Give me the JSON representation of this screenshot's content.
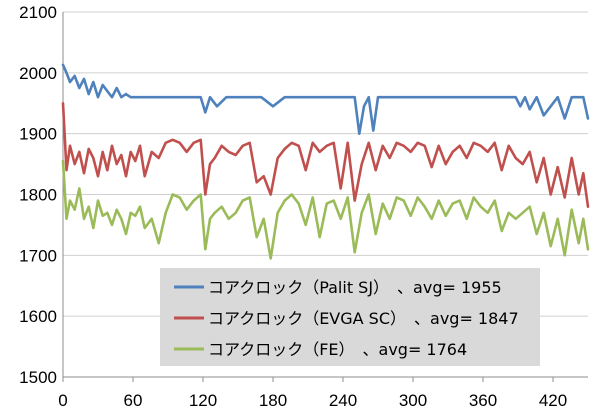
{
  "chart_data": {
    "type": "line",
    "title": "",
    "xlabel": "",
    "ylabel": "",
    "xlim": [
      0,
      450
    ],
    "ylim": [
      1500,
      2100
    ],
    "x_ticks": [
      "0",
      "60",
      "120",
      "180",
      "240",
      "300",
      "360",
      "420"
    ],
    "y_ticks": [
      "1500",
      "1600",
      "1700",
      "1800",
      "1900",
      "2000",
      "2100"
    ],
    "grid": "horizontal",
    "legend_position": "bottom-center",
    "series": [
      {
        "name": "コアクロック（Palit SJ）　、avg= 1955",
        "color": "#4f81bd",
        "x": [
          0,
          3,
          6,
          10,
          14,
          18,
          22,
          26,
          30,
          34,
          38,
          42,
          46,
          50,
          54,
          58,
          62,
          70,
          80,
          90,
          100,
          110,
          118,
          122,
          126,
          132,
          140,
          150,
          160,
          170,
          180,
          190,
          200,
          210,
          220,
          230,
          240,
          246,
          250,
          254,
          258,
          262,
          266,
          270,
          280,
          290,
          300,
          310,
          320,
          330,
          340,
          350,
          360,
          370,
          380,
          388,
          392,
          396,
          400,
          406,
          412,
          418,
          424,
          430,
          436,
          442,
          446,
          450
        ],
        "values": [
          2013,
          2000,
          1985,
          1995,
          1975,
          1990,
          1965,
          1985,
          1960,
          1980,
          1970,
          1960,
          1975,
          1960,
          1965,
          1960,
          1960,
          1960,
          1960,
          1960,
          1960,
          1960,
          1960,
          1935,
          1960,
          1945,
          1960,
          1960,
          1960,
          1960,
          1945,
          1960,
          1960,
          1960,
          1960,
          1960,
          1960,
          1960,
          1960,
          1900,
          1945,
          1960,
          1905,
          1960,
          1960,
          1960,
          1960,
          1960,
          1960,
          1960,
          1960,
          1960,
          1960,
          1960,
          1960,
          1960,
          1945,
          1960,
          1940,
          1960,
          1930,
          1945,
          1960,
          1925,
          1960,
          1960,
          1960,
          1925
        ]
      },
      {
        "name": "コアクロック（EVGA SC）　、avg= 1847",
        "color": "#c0504d",
        "x": [
          0,
          3,
          6,
          10,
          14,
          18,
          22,
          26,
          30,
          34,
          38,
          42,
          46,
          50,
          54,
          58,
          62,
          66,
          70,
          76,
          82,
          88,
          94,
          100,
          106,
          112,
          118,
          122,
          126,
          130,
          136,
          142,
          148,
          154,
          160,
          166,
          172,
          178,
          184,
          190,
          196,
          202,
          208,
          214,
          220,
          226,
          232,
          238,
          244,
          250,
          256,
          262,
          268,
          274,
          280,
          286,
          292,
          298,
          304,
          310,
          316,
          322,
          328,
          334,
          340,
          346,
          352,
          358,
          364,
          370,
          376,
          382,
          388,
          394,
          400,
          406,
          412,
          418,
          424,
          430,
          436,
          442,
          446,
          450
        ],
        "values": [
          1950,
          1840,
          1880,
          1850,
          1870,
          1835,
          1875,
          1860,
          1830,
          1870,
          1840,
          1880,
          1850,
          1865,
          1830,
          1870,
          1855,
          1880,
          1830,
          1870,
          1860,
          1885,
          1890,
          1885,
          1870,
          1885,
          1890,
          1800,
          1850,
          1860,
          1880,
          1870,
          1865,
          1880,
          1885,
          1820,
          1830,
          1800,
          1860,
          1875,
          1885,
          1880,
          1840,
          1885,
          1870,
          1880,
          1885,
          1810,
          1885,
          1790,
          1850,
          1885,
          1840,
          1880,
          1860,
          1885,
          1880,
          1870,
          1885,
          1880,
          1845,
          1880,
          1850,
          1870,
          1880,
          1860,
          1885,
          1880,
          1870,
          1885,
          1840,
          1880,
          1860,
          1850,
          1870,
          1820,
          1860,
          1800,
          1845,
          1795,
          1860,
          1800,
          1835,
          1780
        ]
      },
      {
        "name": "コアクロック（FE）　、avg= 1764",
        "color": "#9bbb59",
        "x": [
          0,
          3,
          6,
          10,
          14,
          18,
          22,
          26,
          30,
          34,
          38,
          42,
          46,
          50,
          54,
          58,
          62,
          66,
          70,
          76,
          82,
          88,
          94,
          100,
          106,
          112,
          118,
          122,
          126,
          130,
          136,
          142,
          148,
          154,
          160,
          166,
          172,
          178,
          184,
          190,
          196,
          202,
          208,
          214,
          220,
          226,
          232,
          238,
          244,
          250,
          256,
          262,
          268,
          274,
          280,
          286,
          292,
          298,
          304,
          310,
          316,
          322,
          328,
          334,
          340,
          346,
          352,
          358,
          364,
          370,
          376,
          382,
          388,
          394,
          400,
          406,
          412,
          418,
          424,
          430,
          436,
          442,
          446,
          450
        ],
        "values": [
          1855,
          1760,
          1790,
          1775,
          1810,
          1760,
          1780,
          1745,
          1790,
          1765,
          1770,
          1750,
          1775,
          1760,
          1735,
          1770,
          1765,
          1780,
          1745,
          1760,
          1720,
          1770,
          1800,
          1795,
          1775,
          1790,
          1800,
          1710,
          1760,
          1770,
          1780,
          1760,
          1770,
          1790,
          1795,
          1730,
          1760,
          1695,
          1770,
          1790,
          1800,
          1785,
          1750,
          1795,
          1730,
          1785,
          1790,
          1760,
          1795,
          1705,
          1770,
          1800,
          1735,
          1785,
          1760,
          1795,
          1790,
          1765,
          1795,
          1780,
          1760,
          1790,
          1765,
          1785,
          1790,
          1760,
          1795,
          1780,
          1770,
          1790,
          1740,
          1770,
          1760,
          1770,
          1780,
          1735,
          1770,
          1715,
          1760,
          1700,
          1775,
          1720,
          1760,
          1710
        ]
      }
    ]
  }
}
